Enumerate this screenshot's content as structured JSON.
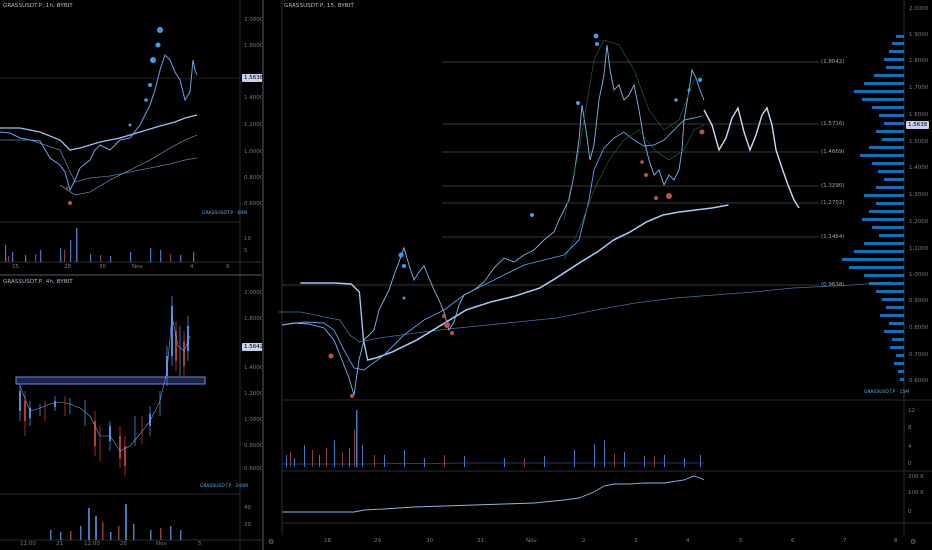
{
  "colors": {
    "background": "#000000",
    "candle_up": "#4a90e2",
    "candle_down": "#c0392b",
    "line": "#7fa8e0",
    "accent_tag": "#c7d2f0",
    "watermark": "#4fb3f0"
  },
  "left_top": {
    "title": "GRASSUSDT.P, 1h, BYBIT",
    "price_ticks": [
      "2.0000",
      "1.8000",
      "1.4000",
      "1.2000",
      "1.0000",
      "0.8000",
      "0.6000"
    ],
    "price_tag": "1.5638",
    "watermark": "GRASSUSDT.P · 60M",
    "volume_ticks": [
      "10",
      "5"
    ],
    "time_ticks": [
      "25",
      "28",
      "30",
      "Nov",
      "4",
      "6"
    ]
  },
  "left_bottom": {
    "title": "GRASSUSDT.P, 4h, BYBIT",
    "price_ticks": [
      "2.0000",
      "1.8000",
      "1.4000",
      "1.2000",
      "1.0000",
      "0.8000",
      "0.6000"
    ],
    "price_tag": "1.5642",
    "watermark": "GRASSUSDT.P · 240M",
    "volume_ticks": [
      "40",
      "20"
    ],
    "time_ticks": [
      "12:00",
      "21",
      "12:00",
      "28",
      "Nov",
      "5"
    ]
  },
  "main": {
    "title": "GRASSUSDT.P, 15, BYBIT",
    "price_ticks": [
      "2.0000",
      "1.9000",
      "1.8000",
      "1.7000",
      "1.6000",
      "1.5000",
      "1.4000",
      "1.3000",
      "1.2000",
      "1.1000",
      "1.0000",
      "0.9000",
      "0.8000",
      "0.7000",
      "0.6000"
    ],
    "price_tag": "1.5638",
    "fib_levels": [
      "(1.8042)",
      "(1.5716)",
      "(1.4669)",
      "(1.3290)",
      "(1.2702)",
      "(1.1454)",
      "(0.9638)"
    ],
    "watermark": "GRASSUSDT.P · 15M",
    "volume_ticks": [
      "12",
      "8",
      "4",
      "0"
    ],
    "oi_ticks": [
      "200 K",
      "100 K",
      "0"
    ],
    "time_ticks": [
      "28",
      "29",
      "30",
      "31",
      "Nov",
      "2",
      "3",
      "4",
      "5",
      "6",
      "7",
      "8"
    ]
  },
  "settings_icon": "gear-icon"
}
